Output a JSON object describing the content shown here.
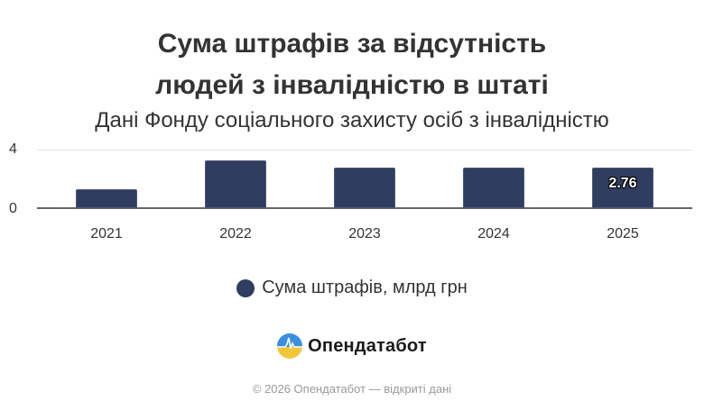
{
  "header": {
    "title_line1": "Сума штрафів за відсутність",
    "title_line2": "людей з інвалідністю в штаті",
    "subtitle": "Дані Фонду соціального захисту осіб з інвалідністю"
  },
  "axis": {
    "y_ticks": [
      "4",
      "0"
    ],
    "x_ticks": [
      "2021",
      "2022",
      "2023",
      "2024",
      "2025"
    ]
  },
  "bars": {
    "data_label_2025": "2.76"
  },
  "legend": {
    "label": "Сума штрафів, млрд грн"
  },
  "brand": {
    "name": "Опендатабот"
  },
  "footer": {
    "text": "© 2026 Опендатабот — відкриті дані"
  },
  "colors": {
    "bar": "#2f3d5f",
    "logo_blue": "#3b8fe0",
    "logo_yellow": "#f2c63a"
  },
  "chart_data": {
    "type": "bar",
    "title": "Сума штрафів за відсутність людей з інвалідністю в штаті",
    "subtitle": "Дані Фонду соціального захисту осіб з інвалідністю",
    "categories": [
      "2021",
      "2022",
      "2023",
      "2024",
      "2025"
    ],
    "series": [
      {
        "name": "Сума штрафів, млрд грн",
        "values": [
          1.27,
          3.24,
          2.78,
          2.77,
          2.76
        ]
      }
    ],
    "data_labels": {
      "2025": "2.76"
    },
    "xlabel": "",
    "ylabel": "",
    "ylim": [
      0,
      4
    ],
    "y_ticks": [
      0,
      4
    ],
    "grid": true,
    "legend_position": "bottom"
  }
}
